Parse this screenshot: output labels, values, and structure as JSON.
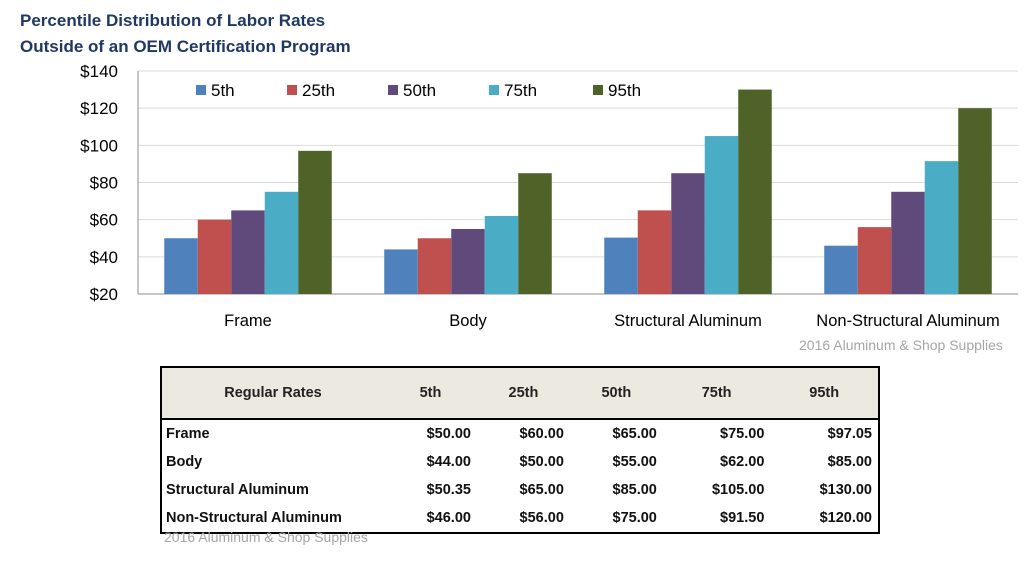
{
  "title": {
    "line1": "Percentile Distribution of Labor Rates",
    "line2": "Outside of an OEM Certification Program"
  },
  "chart_data": {
    "type": "bar",
    "categories": [
      "Frame",
      "Body",
      "Structural Aluminum",
      "Non-Structural Aluminum"
    ],
    "series": [
      {
        "name": "5th",
        "color": "#4f81bd",
        "values": [
          50,
          44,
          50.35,
          46
        ]
      },
      {
        "name": "25th",
        "color": "#c0504d",
        "values": [
          60,
          50,
          65,
          56
        ]
      },
      {
        "name": "50th",
        "color": "#604a7b",
        "values": [
          65,
          55,
          85,
          75
        ]
      },
      {
        "name": "75th",
        "color": "#4bacc6",
        "values": [
          75,
          62,
          105,
          91.5
        ]
      },
      {
        "name": "95th",
        "color": "#4f6228",
        "values": [
          97.05,
          85,
          130,
          120
        ]
      }
    ],
    "yticks": [
      "$20",
      "$40",
      "$60",
      "$80",
      "$100",
      "$120",
      "$140"
    ],
    "ylim": [
      20,
      140
    ],
    "grid": true,
    "legend": "top-left"
  },
  "chart_source": "2016 Aluminum & Shop Supplies",
  "table": {
    "headers": [
      "Regular Rates",
      "5th",
      "25th",
      "50th",
      "75th",
      "95th"
    ],
    "rows": [
      [
        "Frame",
        "$50.00",
        "$60.00",
        "$65.00",
        "$75.00",
        "$97.05"
      ],
      [
        "Body",
        "$44.00",
        "$50.00",
        "$55.00",
        "$62.00",
        "$85.00"
      ],
      [
        "Structural Aluminum",
        "$50.35",
        "$65.00",
        "$85.00",
        "$105.00",
        "$130.00"
      ],
      [
        "Non-Structural Aluminum",
        "$46.00",
        "$56.00",
        "$75.00",
        "$91.50",
        "$120.00"
      ]
    ]
  },
  "table_source": "2016 Aluminum & Shop Supplies"
}
